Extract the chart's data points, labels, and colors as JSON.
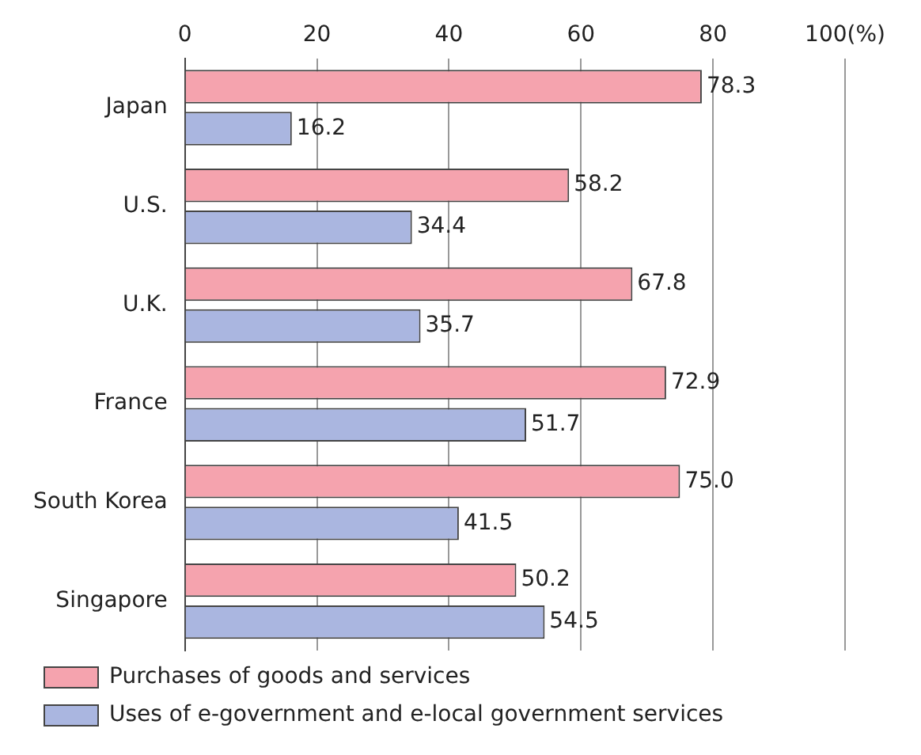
{
  "chart_data": {
    "type": "bar",
    "orientation": "horizontal",
    "categories": [
      "Japan",
      "U.S.",
      "U.K.",
      "France",
      "South Korea",
      "Singapore"
    ],
    "series": [
      {
        "name": "Purchases of goods and services",
        "color": "#f5a3ae",
        "values": [
          78.3,
          58.2,
          67.8,
          72.9,
          75.0,
          50.2
        ],
        "value_labels": [
          "78.3",
          "58.2",
          "67.8",
          "72.9",
          "75.0",
          "50.2"
        ]
      },
      {
        "name": "Uses of e-government and e-local government services",
        "color": "#aab6e0",
        "values": [
          16.2,
          34.4,
          35.7,
          51.7,
          41.5,
          54.5
        ],
        "value_labels": [
          "16.2",
          "34.4",
          "35.7",
          "51.7",
          "41.5",
          "54.5"
        ]
      }
    ],
    "xlim": [
      0,
      100
    ],
    "xticks": [
      0,
      20,
      40,
      60,
      80,
      {
        "value": 100,
        "label": "100(%)"
      }
    ],
    "grid": "x",
    "legend": "bottom left"
  }
}
